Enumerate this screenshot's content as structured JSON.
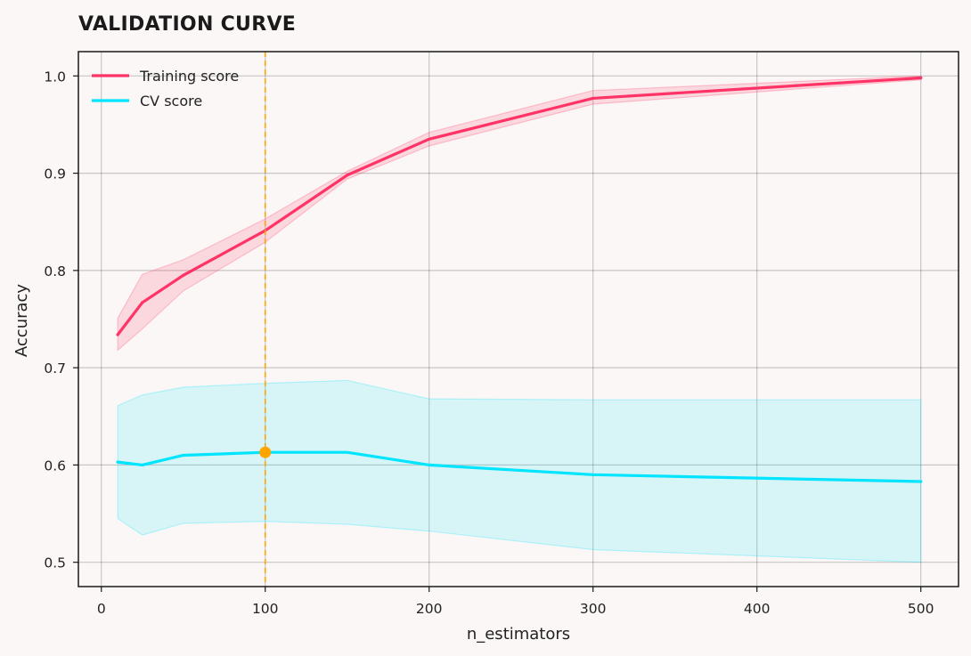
{
  "chart_data": {
    "type": "line",
    "title": "VALIDATION CURVE",
    "xlabel": "n_estimators",
    "ylabel": "Accuracy",
    "xlim": [
      -14,
      523
    ],
    "ylim": [
      0.475,
      1.025
    ],
    "xticks": [
      0,
      100,
      200,
      300,
      400,
      500
    ],
    "yticks": [
      0.5,
      0.6,
      0.7,
      0.8,
      0.9,
      1.0
    ],
    "ytick_labels": [
      "0.5",
      "0.6",
      "0.7",
      "0.8",
      "0.9",
      "1.0"
    ],
    "grid": true,
    "legend_position": "upper-left",
    "x": [
      10,
      25,
      50,
      100,
      150,
      200,
      300,
      500
    ],
    "series": [
      {
        "name": "Training score",
        "color": "#ff3366",
        "values": [
          0.734,
          0.767,
          0.795,
          0.841,
          0.898,
          0.935,
          0.977,
          0.998
        ],
        "band_lower": [
          0.718,
          0.74,
          0.779,
          0.829,
          0.894,
          0.928,
          0.971,
          0.996
        ],
        "band_upper": [
          0.751,
          0.796,
          0.811,
          0.853,
          0.902,
          0.942,
          0.985,
          1.0
        ]
      },
      {
        "name": "CV score",
        "color": "#00e5ff",
        "values": [
          0.603,
          0.6,
          0.61,
          0.613,
          0.613,
          0.6,
          0.59,
          0.583
        ],
        "band_lower": [
          0.545,
          0.528,
          0.54,
          0.542,
          0.539,
          0.532,
          0.513,
          0.5
        ],
        "band_upper": [
          0.661,
          0.672,
          0.68,
          0.684,
          0.687,
          0.668,
          0.667,
          0.667
        ]
      }
    ],
    "annotations": {
      "best_x": 100,
      "best_value": 0.613,
      "vline_color": "#ffa500",
      "marker_color": "#ffa500"
    }
  }
}
